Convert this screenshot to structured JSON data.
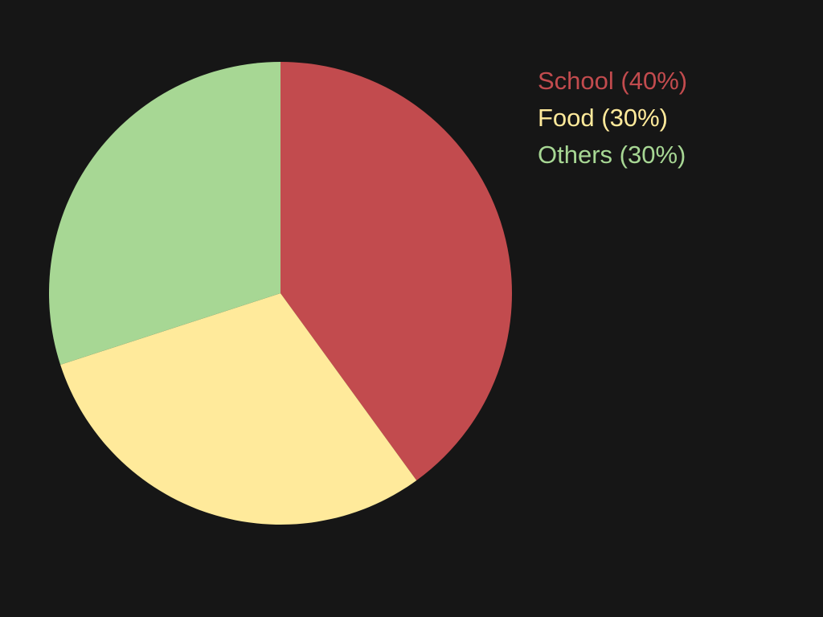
{
  "chart_data": {
    "type": "pie",
    "title": "",
    "slices": [
      {
        "label": "School",
        "value": 40,
        "legend_text": "School (40%)",
        "color": "#c24b4e"
      },
      {
        "label": "Food",
        "value": 30,
        "legend_text": "Food (30%)",
        "color": "#ffea9b"
      },
      {
        "label": "Others",
        "value": 30,
        "legend_text": "Others (30%)",
        "color": "#a7d794"
      }
    ],
    "start_angle": "12 o'clock",
    "direction": "clockwise",
    "legend_position": "top-right"
  },
  "background_color": "#161616"
}
